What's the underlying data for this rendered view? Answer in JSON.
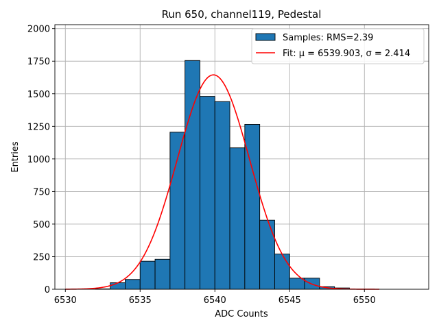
{
  "chart_data": {
    "type": "bar",
    "title": "Run 650, channel119, Pedestal",
    "xlabel": "ADC Counts",
    "ylabel": "Entries",
    "xlim": [
      6529.3,
      6554.3
    ],
    "ylim": [
      0,
      2030
    ],
    "grid": true,
    "x_ticks": [
      6530,
      6535,
      6540,
      6545,
      6550
    ],
    "x_tick_labels": [
      "6530",
      "6535",
      "6540",
      "6545",
      "6550"
    ],
    "y_ticks": [
      0,
      250,
      500,
      750,
      1000,
      1250,
      1500,
      1750,
      2000
    ],
    "y_tick_labels": [
      "0",
      "250",
      "500",
      "750",
      "1000",
      "1250",
      "1500",
      "1750",
      "2000"
    ],
    "histogram": {
      "name": "Samples: RMS=2.39",
      "color": "#1f77b4",
      "edgecolor": "#000000",
      "bin_edges": [
        6530,
        6531,
        6532,
        6533,
        6534,
        6535,
        6536,
        6537,
        6538,
        6539,
        6540,
        6541,
        6542,
        6543,
        6544,
        6545,
        6546,
        6547,
        6548,
        6549,
        6550,
        6551,
        6552,
        6553
      ],
      "counts": [
        0,
        0,
        3,
        50,
        75,
        215,
        230,
        1205,
        1755,
        1480,
        1440,
        1085,
        1265,
        530,
        270,
        85,
        85,
        20,
        10,
        0,
        0,
        0,
        0
      ]
    },
    "fit": {
      "name": "Fit: μ = 6539.903, σ = 2.414",
      "color": "#ff0000",
      "mu": 6539.903,
      "sigma": 2.414,
      "amplitude": 1645,
      "x_range": [
        6530,
        6551
      ]
    },
    "legend_location": "top-right"
  }
}
